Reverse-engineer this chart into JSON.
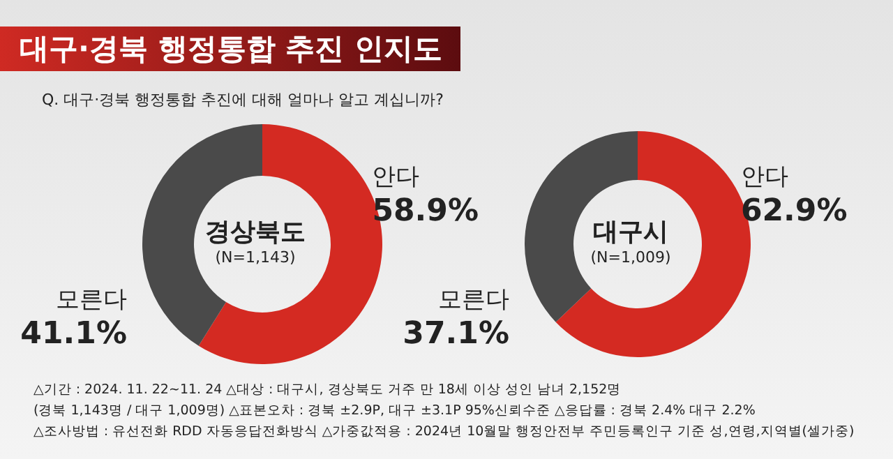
{
  "chart_data": [
    {
      "type": "donut",
      "title": "대구·경북 행정통합 추진 인지도",
      "subtitle": "Q. 대구·경북 행정통합 추진에 대해 얼마나 알고 계십니까?",
      "categories": [
        "안다",
        "모른다"
      ],
      "values": [
        58.9,
        41.1
      ],
      "colors": [
        "#d42a22",
        "#4a4a4a"
      ],
      "value_labels": [
        "58.9%",
        "41.1%"
      ],
      "annotations": [
        "경상북도",
        "(N=1,143)"
      ]
    },
    {
      "type": "donut",
      "categories": [
        "안다",
        "모른다"
      ],
      "values": [
        62.9,
        37.1
      ],
      "colors": [
        "#d42a22",
        "#4a4a4a"
      ],
      "value_labels": [
        "62.9%",
        "37.1%"
      ],
      "annotations": [
        "대구시",
        "(N=1,009)",
        "△기간 : 2024. 11. 22~11. 24   △대상 : 대구시, 경상북도 거주 만 18세 이상 성인 남녀 2,152명",
        "(경북 1,143명 / 대구 1,009명)   △표본오차 : 경북 ±2.9P, 대구 ±3.1P 95%신뢰수준   △응답률 : 경북 2.4%   대구 2.2%",
        "△조사방법 : 유선전화 RDD 자동응답전화방식   △가중값적용 : 2024년 10월말 행정안전부 주민등록인구 기준 성,연령,지역별(셀가중)"
      ]
    }
  ]
}
